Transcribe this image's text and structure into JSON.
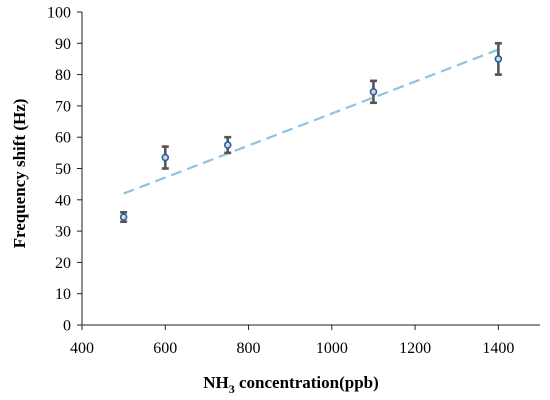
{
  "chart_data": {
    "type": "scatter",
    "title": "",
    "xlabel_main": "NH",
    "xlabel_sub": "3",
    "xlabel_rest": " concentration(ppb)",
    "ylabel": "Frequency shift (Hz)",
    "xlim": [
      400,
      1500
    ],
    "ylim": [
      0,
      100
    ],
    "x_ticks": [
      400,
      600,
      800,
      1000,
      1200,
      1400
    ],
    "y_ticks": [
      0,
      10,
      20,
      30,
      40,
      50,
      60,
      70,
      80,
      90,
      100
    ],
    "grid": false,
    "legend": "none",
    "series": [
      {
        "x": [
          500,
          600,
          750,
          1100,
          1400
        ],
        "y": [
          34.5,
          53.5,
          57.5,
          74.5,
          85
        ],
        "err_low": [
          1.5,
          3.5,
          2.5,
          3.5,
          5
        ],
        "err_high": [
          1.5,
          3.5,
          2.5,
          3.5,
          5
        ],
        "marker_color": "#2f5f8f",
        "error_bar_color": "#555555"
      }
    ],
    "trendline": {
      "style": "dashed",
      "color": "#8fc3e2",
      "x": [
        500,
        1400
      ],
      "y": [
        42,
        88
      ]
    }
  }
}
